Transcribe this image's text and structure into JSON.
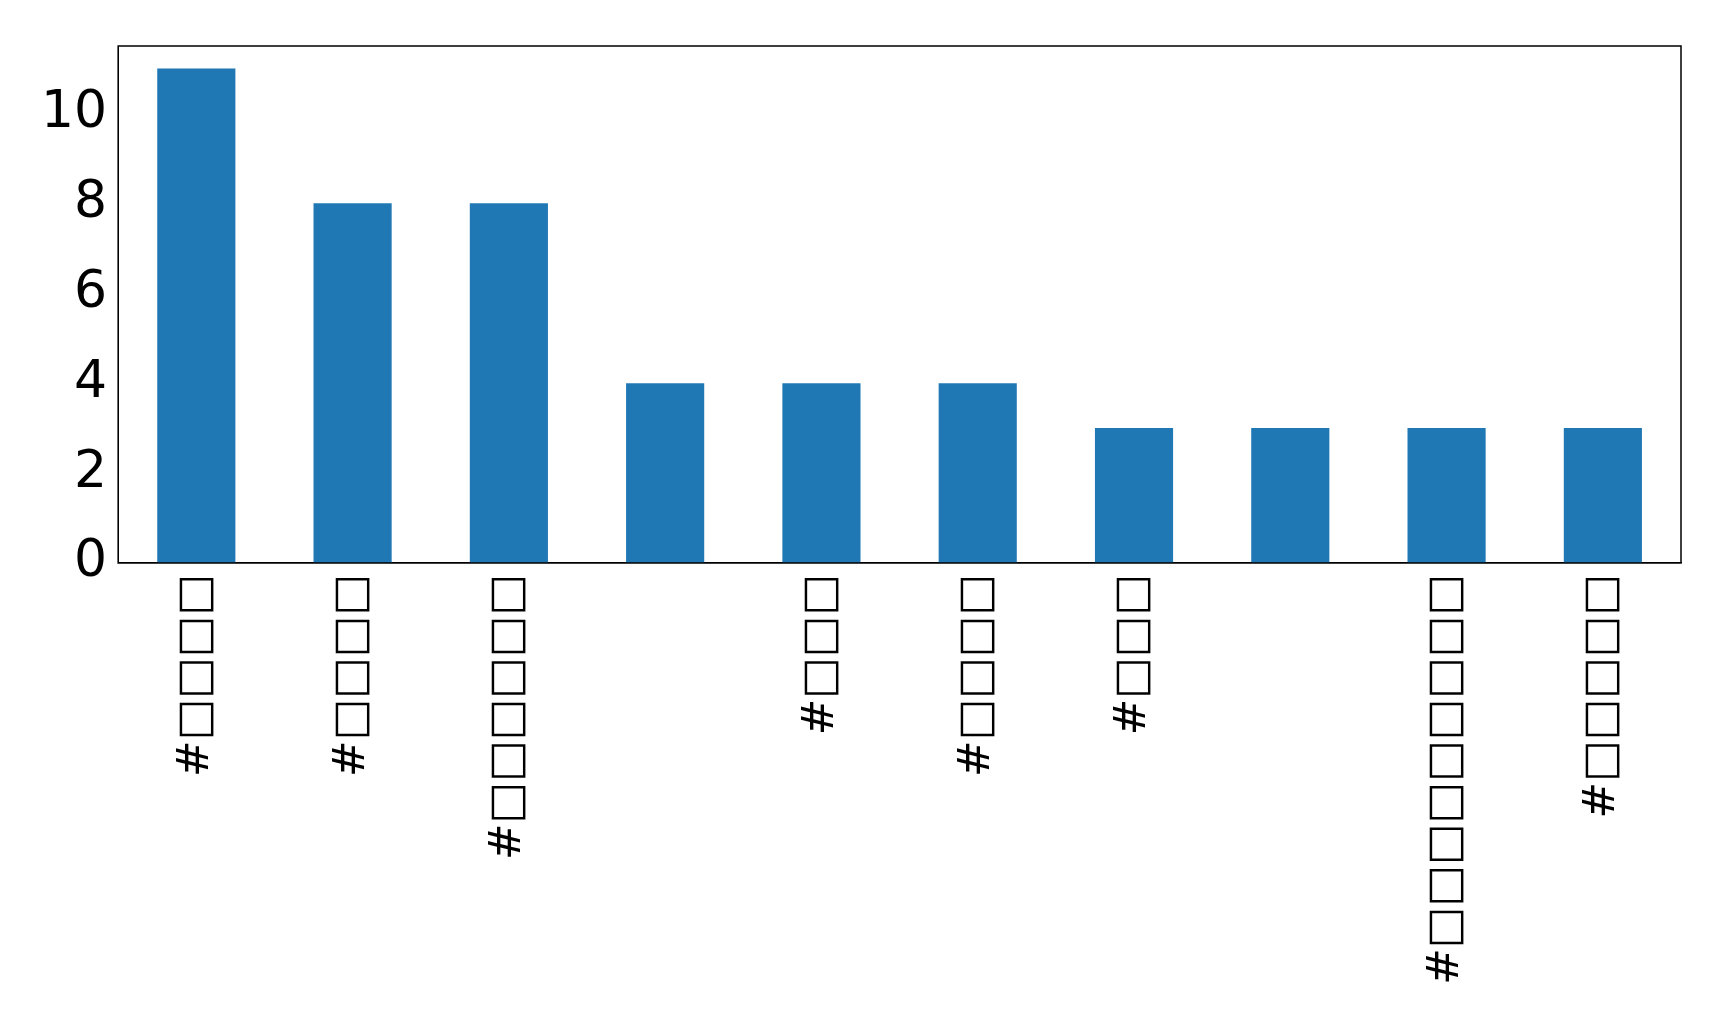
{
  "chart_data": {
    "type": "bar",
    "categories": [
      "#□□□□",
      "#□□□□",
      "#□□□□□□",
      null,
      "#□□□",
      "#□□□□",
      "#□□□",
      null,
      "#□□□□□□□□□",
      "#□□□□□"
    ],
    "values": [
      11,
      8,
      8,
      4,
      4,
      4,
      3,
      3,
      3,
      3
    ],
    "color": "#1f77b4",
    "ylim": [
      0,
      11.5
    ],
    "yticks": [
      0,
      2,
      4,
      6,
      8,
      10
    ],
    "grid": false,
    "legend": false
  }
}
